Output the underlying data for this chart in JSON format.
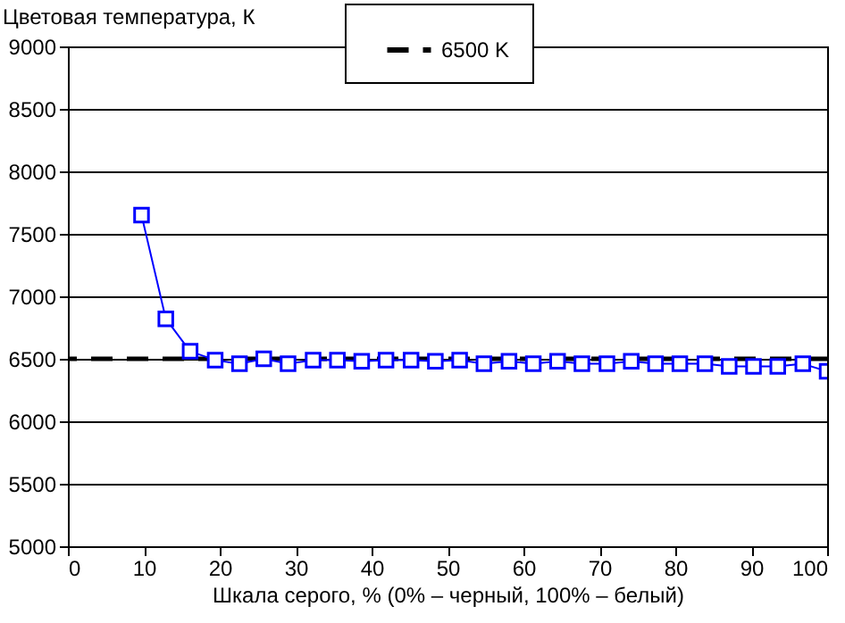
{
  "chart_data": {
    "type": "line",
    "xlabel": "Шкала серого, % (0% – черный, 100% – белый)",
    "ylabel": "Цветовая температура, К",
    "x": [
      9.7,
      12.9,
      16.1,
      19.4,
      22.6,
      25.8,
      29.0,
      32.3,
      35.5,
      38.7,
      41.9,
      45.2,
      48.4,
      51.6,
      54.8,
      58.1,
      61.3,
      64.5,
      67.7,
      71.0,
      74.2,
      77.4,
      80.6,
      83.9,
      87.1,
      90.3,
      93.5,
      96.8,
      100
    ],
    "series": [
      {
        "color": "#0000ff",
        "values": [
          7650,
          6820,
          6560,
          6490,
          6460,
          6500,
          6460,
          6490,
          6490,
          6480,
          6490,
          6490,
          6480,
          6490,
          6460,
          6480,
          6460,
          6480,
          6460,
          6460,
          6480,
          6460,
          6460,
          6460,
          6440,
          6440,
          6440,
          6460,
          6400
        ]
      }
    ],
    "ref_lines": [
      {
        "axis": "y",
        "value": 6500,
        "label": "6500 K",
        "color": "#000000",
        "line_style": "dashed"
      }
    ],
    "xlim": [
      0,
      100
    ],
    "xticks": [
      0,
      10,
      20,
      30,
      40,
      50,
      60,
      70,
      80,
      90,
      100
    ],
    "ylim": [
      5000,
      9000
    ],
    "yticks": [
      5000,
      5500,
      6000,
      6500,
      7000,
      7500,
      8000,
      8500,
      9000
    ],
    "grid": "y",
    "legend": "top right",
    "marker": "square",
    "line_style": "solid"
  }
}
